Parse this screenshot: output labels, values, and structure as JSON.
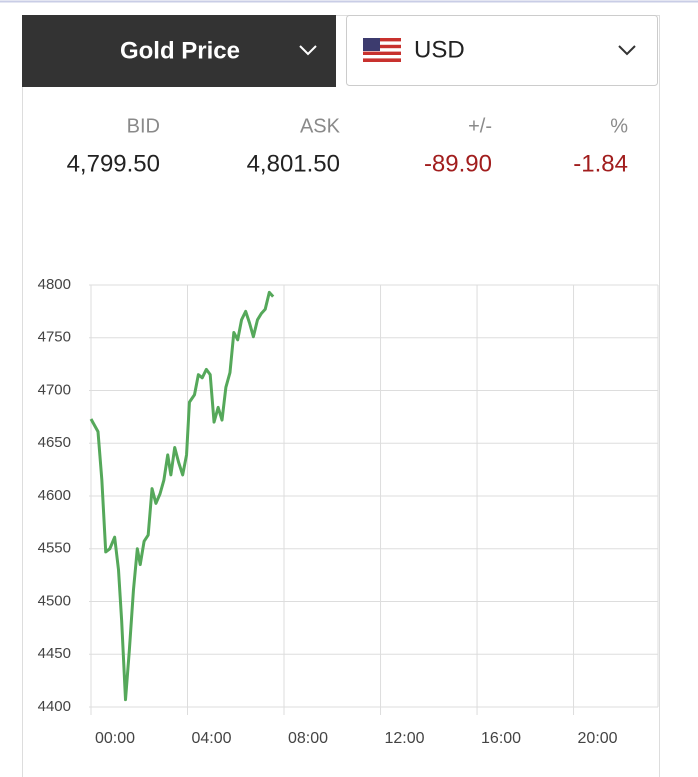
{
  "header": {
    "title": "Gold Price",
    "currency": "USD"
  },
  "quote": {
    "labels": [
      "BID",
      "ASK",
      "+/-",
      "%"
    ],
    "values": [
      "4,799.50",
      "4,801.50",
      "-89.90",
      "-1.84"
    ]
  },
  "chart_data": {
    "type": "line",
    "x": [
      0,
      0.29,
      0.45,
      0.61,
      0.78,
      0.98,
      1.14,
      1.27,
      1.43,
      1.59,
      1.76,
      1.92,
      2.04,
      2.2,
      2.37,
      2.53,
      2.69,
      2.86,
      3.02,
      3.18,
      3.31,
      3.47,
      3.63,
      3.8,
      3.96,
      4.08,
      4.29,
      4.45,
      4.61,
      4.78,
      4.94,
      5.1,
      5.27,
      5.43,
      5.59,
      5.76,
      5.92,
      6.08,
      6.24,
      6.41,
      6.57,
      6.73,
      6.9,
      7.06,
      7.22,
      7.39,
      7.55
    ],
    "series": [
      {
        "name": "Gold Price",
        "color": "#55a85a",
        "values": [
          4673,
          4661,
          4615,
          4547,
          4550,
          4561,
          4530,
          4482,
          4407,
          4454,
          4511,
          4550,
          4535,
          4557,
          4563,
          4607,
          4593,
          4602,
          4615,
          4639,
          4620,
          4646,
          4632,
          4620,
          4639,
          4689,
          4696,
          4715,
          4712,
          4720,
          4715,
          4670,
          4684,
          4672,
          4703,
          4717,
          4755,
          4748,
          4767,
          4775,
          4764,
          4751,
          4767,
          4773,
          4777,
          4793,
          4789
        ]
      }
    ],
    "xlim": [
      0,
      23.5
    ],
    "xticks": [
      {
        "value": 0,
        "label": "00:00"
      },
      {
        "value": 4,
        "label": "04:00"
      },
      {
        "value": 8,
        "label": "08:00"
      },
      {
        "value": 12,
        "label": "12:00"
      },
      {
        "value": 16,
        "label": "16:00"
      },
      {
        "value": 20,
        "label": "20:00"
      }
    ],
    "ylim": [
      4400,
      4800
    ],
    "yticks": [
      4400,
      4450,
      4500,
      4550,
      4600,
      4650,
      4700,
      4750,
      4800
    ],
    "grid": true
  }
}
